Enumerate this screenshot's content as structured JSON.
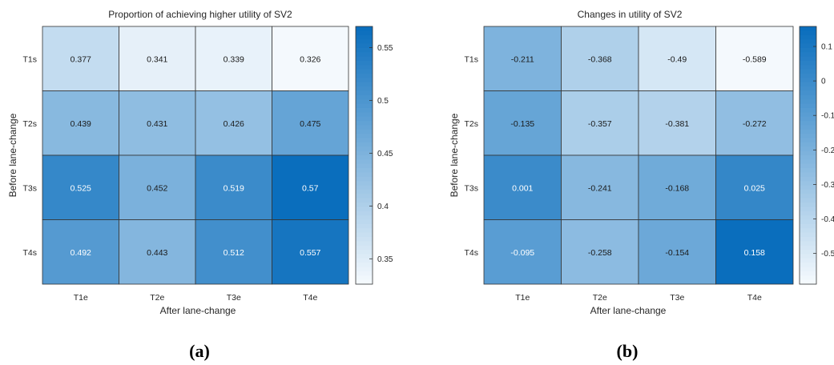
{
  "chart_data": [
    {
      "type": "heatmap",
      "title": "Proportion of achieving higher utility of SV2",
      "xlabel": "After lane-change",
      "ylabel": "Before lane-change",
      "x_categories": [
        "T1e",
        "T2e",
        "T3e",
        "T4e"
      ],
      "y_categories": [
        "T1s",
        "T2s",
        "T3s",
        "T4s"
      ],
      "values": [
        [
          0.377,
          0.341,
          0.339,
          0.326
        ],
        [
          0.439,
          0.431,
          0.426,
          0.475
        ],
        [
          0.525,
          0.452,
          0.519,
          0.57
        ],
        [
          0.492,
          0.443,
          0.512,
          0.557
        ]
      ],
      "color_range": [
        0.326,
        0.57
      ],
      "colorbar_ticks": [
        "0.55",
        "0.5",
        "0.45",
        "0.4",
        "0.35"
      ],
      "colorbar_tick_values": [
        0.55,
        0.5,
        0.45,
        0.4,
        0.35
      ],
      "colormap": [
        "#f4f9fd",
        "#0a6ebd"
      ],
      "panel_label": "(a)"
    },
    {
      "type": "heatmap",
      "title": "Changes in utility of SV2",
      "xlabel": "After lane-change",
      "ylabel": "Before lane-change",
      "x_categories": [
        "T1e",
        "T2e",
        "T3e",
        "T4e"
      ],
      "y_categories": [
        "T1s",
        "T2s",
        "T3s",
        "T4s"
      ],
      "values": [
        [
          -0.211,
          -0.368,
          -0.49,
          -0.589
        ],
        [
          -0.135,
          -0.357,
          -0.381,
          -0.272
        ],
        [
          0.001,
          -0.241,
          -0.168,
          0.025
        ],
        [
          -0.095,
          -0.258,
          -0.154,
          0.158
        ]
      ],
      "color_range": [
        -0.589,
        0.158
      ],
      "colorbar_ticks": [
        "0.1",
        "0",
        "-0.1",
        "-0.2",
        "-0.3",
        "-0.4",
        "-0.5"
      ],
      "colorbar_tick_values": [
        0.1,
        0,
        -0.1,
        -0.2,
        -0.3,
        -0.4,
        -0.5
      ],
      "colormap": [
        "#f4f9fd",
        "#0a6ebd"
      ],
      "panel_label": "(b)"
    }
  ]
}
